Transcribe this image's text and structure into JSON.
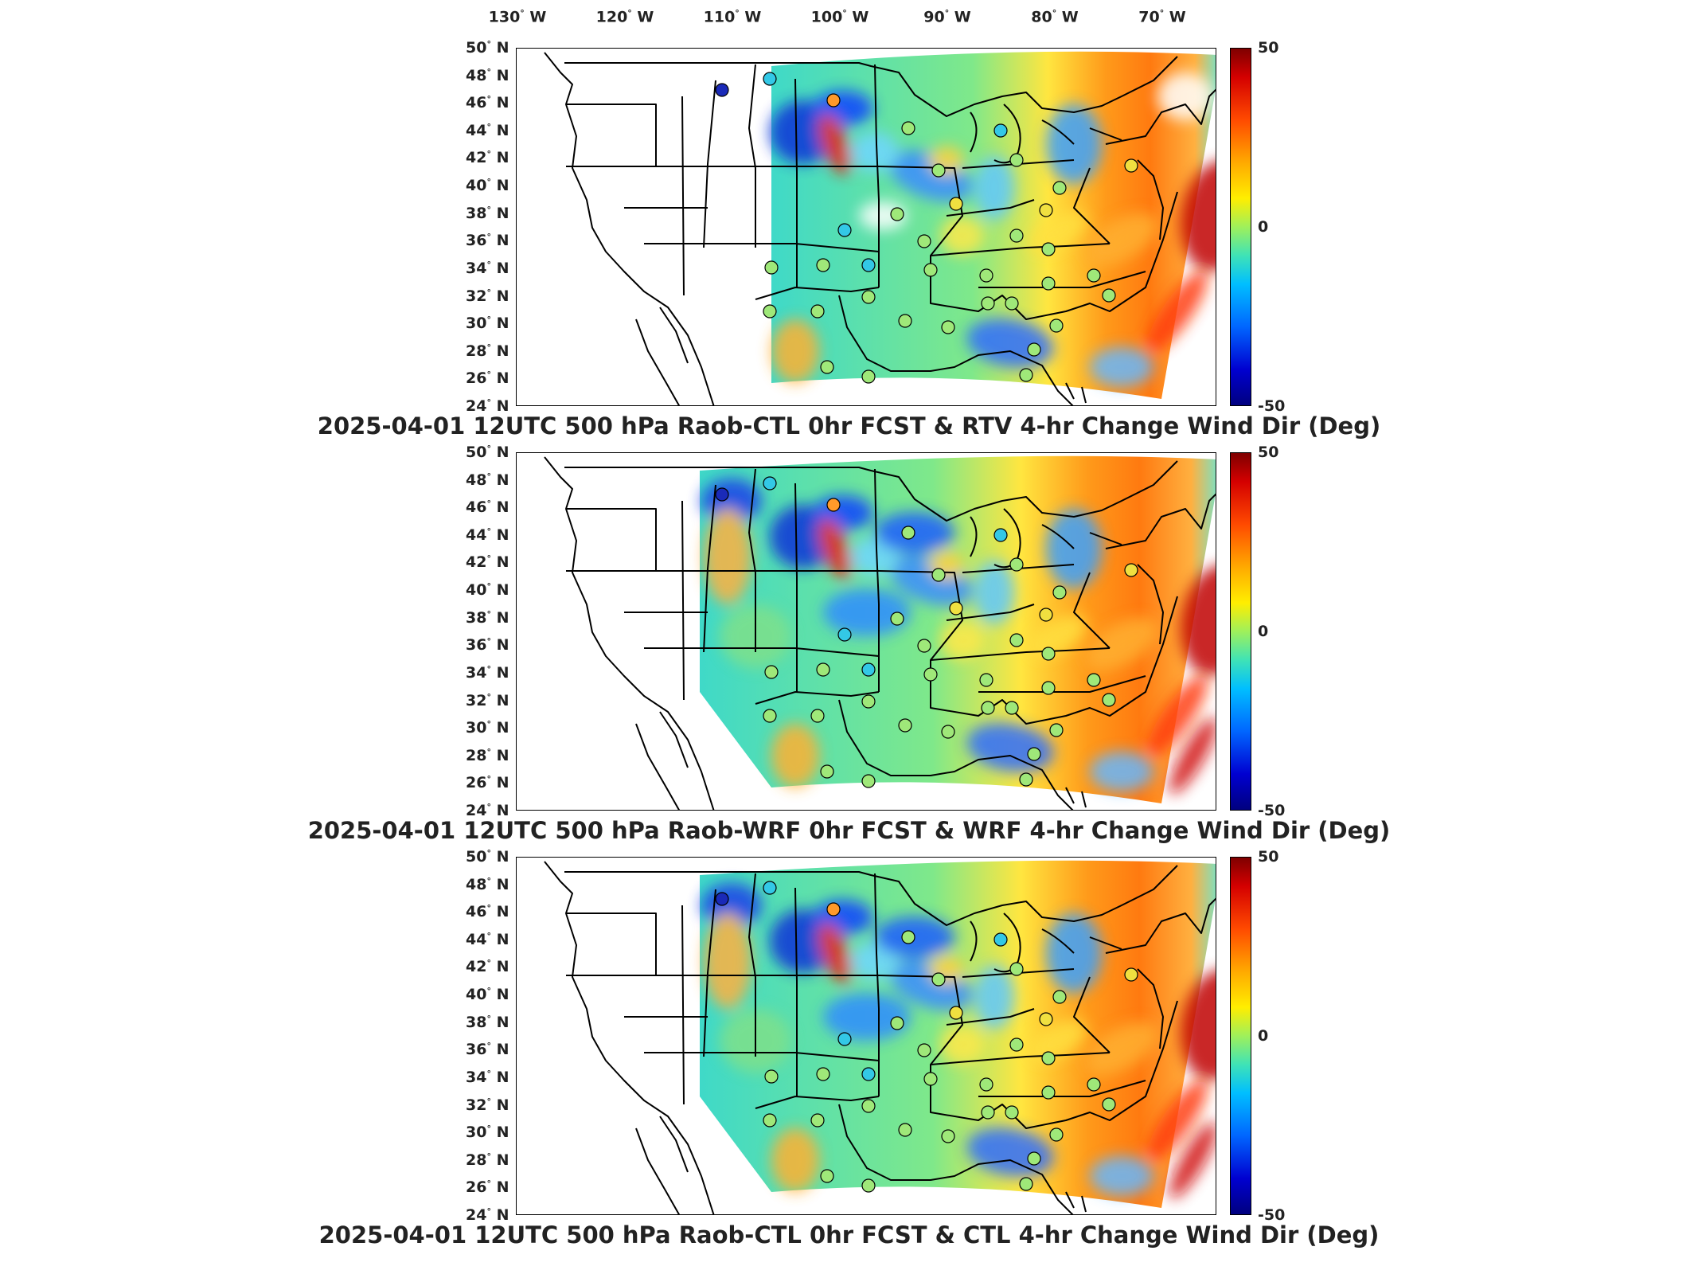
{
  "longitude_labels": [
    {
      "deg": "130",
      "dir": "W"
    },
    {
      "deg": "120",
      "dir": "W"
    },
    {
      "deg": "110",
      "dir": "W"
    },
    {
      "deg": "100",
      "dir": "W"
    },
    {
      "deg": "90",
      "dir": "W"
    },
    {
      "deg": "80",
      "dir": "W"
    },
    {
      "deg": "70",
      "dir": "W"
    }
  ],
  "latitude_labels": [
    "50",
    "48",
    "46",
    "44",
    "42",
    "40",
    "38",
    "36",
    "34",
    "32",
    "30",
    "28",
    "26",
    "24"
  ],
  "latitude_suffix": "N",
  "degree_symbol": "°",
  "colorbar": {
    "max_label": "50",
    "mid_label": "0",
    "min_label": "-50",
    "min": -50,
    "max": 50,
    "colormap": "jet"
  },
  "panels": [
    {
      "caption": "2025-04-01 12UTC 500 hPa Raob-CTL 0hr FCST & RTV 4-hr Change Wind Dir (Deg)"
    },
    {
      "caption": "2025-04-01 12UTC 500 hPa Raob-WRF 0hr FCST & WRF 4-hr Change Wind Dir (Deg)"
    },
    {
      "caption": "2025-04-01 12UTC 500 hPa Raob-CTL 0hr FCST & CTL 4-hr Change Wind Dir (Deg)"
    }
  ],
  "colors": {
    "ocean": "#ffffff",
    "lines": "#000000",
    "field_cool": "#3fd9c8",
    "field_warm": "#ff8a1a"
  }
}
